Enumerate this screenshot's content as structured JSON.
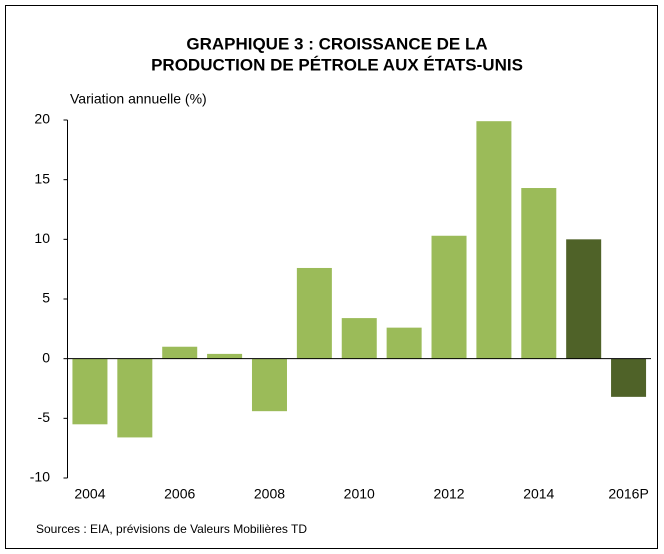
{
  "chart_data": {
    "type": "bar",
    "title": [
      "GRAPHIQUE 3 : CROISSANCE DE LA",
      "PRODUCTION DE PÉTROLE AUX ÉTATS-UNIS"
    ],
    "y_label": "Variation annuelle (%)",
    "source": "Sources : EIA, prévisions de Valeurs Mobilières TD",
    "categories": [
      "2004",
      null,
      "2006",
      null,
      "2008",
      null,
      "2010",
      null,
      "2012",
      null,
      "2014",
      null,
      "2016P"
    ],
    "values": [
      -5.5,
      -6.6,
      1.0,
      0.4,
      -4.4,
      7.6,
      3.4,
      2.6,
      10.3,
      19.9,
      14.3,
      10.0,
      -3.2
    ],
    "colors": [
      "#9bbb59",
      "#9bbb59",
      "#9bbb59",
      "#9bbb59",
      "#9bbb59",
      "#9bbb59",
      "#9bbb59",
      "#9bbb59",
      "#9bbb59",
      "#9bbb59",
      "#9bbb59",
      "#4f6228",
      "#4f6228"
    ],
    "ylim": [
      -10,
      20
    ],
    "yticks": [
      -10,
      -5,
      0,
      5,
      10,
      15,
      20
    ],
    "grid": false
  }
}
